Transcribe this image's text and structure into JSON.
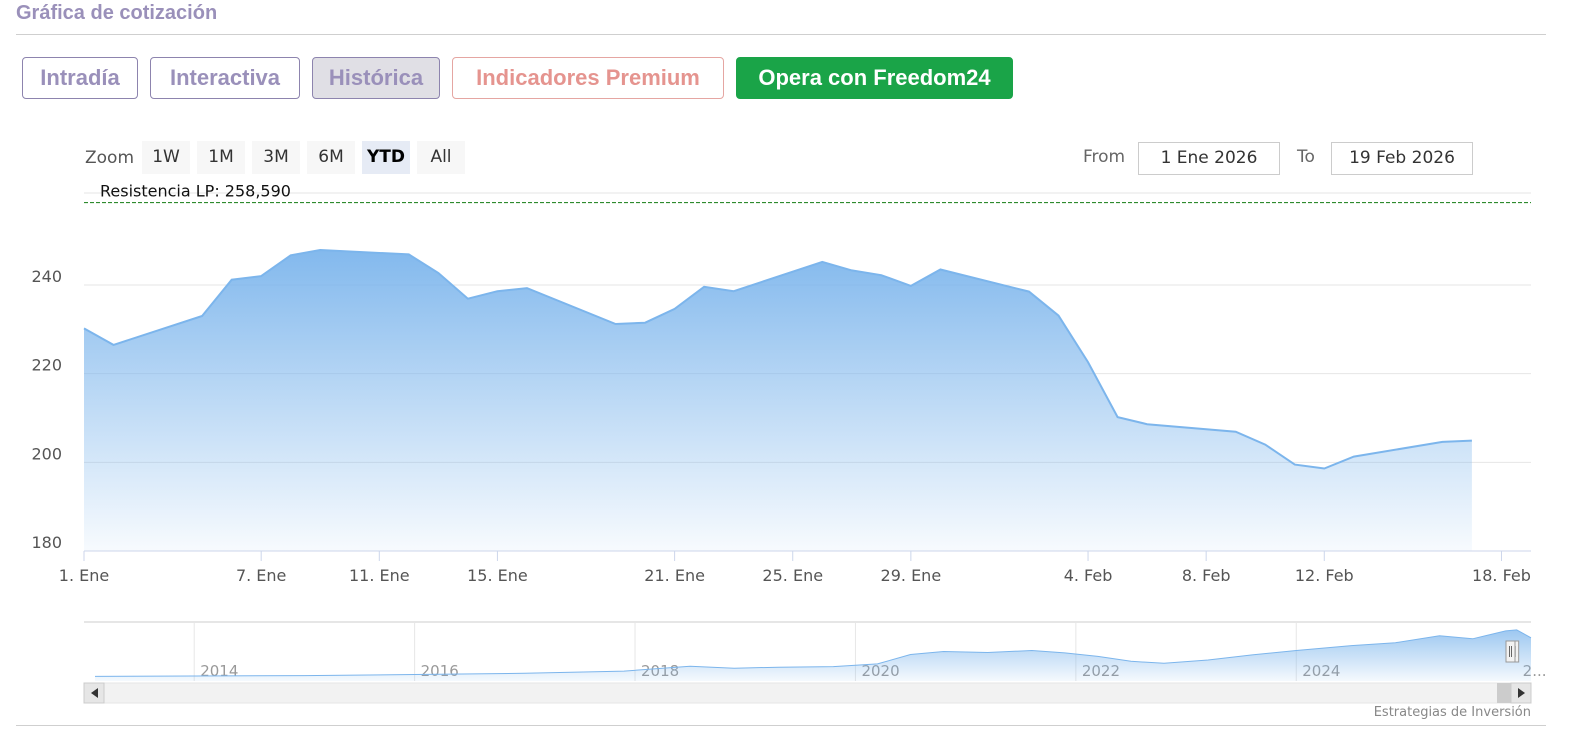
{
  "page": {
    "title": "Gráfica de cotización",
    "tabs": [
      {
        "label": "Intradía",
        "style": "normal"
      },
      {
        "label": "Interactiva",
        "style": "normal"
      },
      {
        "label": "Histórica",
        "style": "active"
      },
      {
        "label": "Indicadores Premium",
        "style": "premium"
      },
      {
        "label": "Opera con Freedom24",
        "style": "cta"
      }
    ],
    "credits": "Estrategias de Inversión"
  },
  "toolbar": {
    "zoom_label": "Zoom",
    "zoom_buttons": [
      "1W",
      "1M",
      "3M",
      "6M",
      "YTD",
      "All"
    ],
    "selected_zoom": "YTD",
    "from_label": "From",
    "from_value": "1 Ene 2026",
    "to_label": "To",
    "to_value": "19 Feb 2026"
  },
  "colors": {
    "accent": "#9a90ba",
    "cta": "#1aa448",
    "premium": "#e5948f",
    "series_line": "#7cb5ec",
    "resistance_line": "#2e8b2e"
  },
  "chart_data": {
    "type": "area",
    "title": "",
    "xlabel": "",
    "ylabel": "",
    "ylim": [
      180,
      260
    ],
    "yticks": [
      180,
      200,
      220,
      240
    ],
    "grid": true,
    "x_domain": [
      "2026-01-01",
      "2026-02-19"
    ],
    "xticks": [
      {
        "date": "2026-01-01",
        "label": "1. Ene"
      },
      {
        "date": "2026-01-07",
        "label": "7. Ene"
      },
      {
        "date": "2026-01-11",
        "label": "11. Ene"
      },
      {
        "date": "2026-01-15",
        "label": "15. Ene"
      },
      {
        "date": "2026-01-21",
        "label": "21. Ene"
      },
      {
        "date": "2026-01-25",
        "label": "25. Ene"
      },
      {
        "date": "2026-01-29",
        "label": "29. Ene"
      },
      {
        "date": "2026-02-04",
        "label": "4. Feb"
      },
      {
        "date": "2026-02-08",
        "label": "8. Feb"
      },
      {
        "date": "2026-02-12",
        "label": "12. Feb"
      },
      {
        "date": "2026-02-18",
        "label": "18. Feb"
      }
    ],
    "series": [
      {
        "values": [
          {
            "x": "2026-01-01",
            "y": 230.2
          },
          {
            "x": "2026-01-02",
            "y": 226.5
          },
          {
            "x": "2026-01-05",
            "y": 233.0
          },
          {
            "x": "2026-01-06",
            "y": 241.2
          },
          {
            "x": "2026-01-07",
            "y": 242.0
          },
          {
            "x": "2026-01-08",
            "y": 246.7
          },
          {
            "x": "2026-01-09",
            "y": 247.9
          },
          {
            "x": "2026-01-12",
            "y": 246.9
          },
          {
            "x": "2026-01-13",
            "y": 242.7
          },
          {
            "x": "2026-01-14",
            "y": 236.9
          },
          {
            "x": "2026-01-15",
            "y": 238.6
          },
          {
            "x": "2026-01-16",
            "y": 239.3
          },
          {
            "x": "2026-01-19",
            "y": 231.2
          },
          {
            "x": "2026-01-20",
            "y": 231.5
          },
          {
            "x": "2026-01-21",
            "y": 234.6
          },
          {
            "x": "2026-01-22",
            "y": 239.6
          },
          {
            "x": "2026-01-23",
            "y": 238.6
          },
          {
            "x": "2026-01-26",
            "y": 245.2
          },
          {
            "x": "2026-01-27",
            "y": 243.3
          },
          {
            "x": "2026-01-28",
            "y": 242.2
          },
          {
            "x": "2026-01-29",
            "y": 239.8
          },
          {
            "x": "2026-01-30",
            "y": 243.5
          },
          {
            "x": "2026-02-02",
            "y": 238.5
          },
          {
            "x": "2026-02-03",
            "y": 233.1
          },
          {
            "x": "2026-02-04",
            "y": 222.6
          },
          {
            "x": "2026-02-05",
            "y": 210.2
          },
          {
            "x": "2026-02-06",
            "y": 208.6
          },
          {
            "x": "2026-02-09",
            "y": 206.9
          },
          {
            "x": "2026-02-10",
            "y": 204.0
          },
          {
            "x": "2026-02-11",
            "y": 199.5
          },
          {
            "x": "2026-02-12",
            "y": 198.6
          },
          {
            "x": "2026-02-13",
            "y": 201.3
          },
          {
            "x": "2026-02-16",
            "y": 204.6
          },
          {
            "x": "2026-02-17",
            "y": 204.9
          }
        ]
      }
    ],
    "annotations": [
      {
        "type": "hline",
        "y": 258.59,
        "label": "Resistencia LP: 258,590",
        "style": "dashed"
      }
    ],
    "navigator": {
      "year_labels": [
        "2014",
        "2016",
        "2018",
        "2020",
        "2022",
        "2024",
        "2..."
      ],
      "year_range": [
        2013,
        2026.13
      ],
      "ylim": [
        0,
        260
      ],
      "series": [
        {
          "x": 2013.1,
          "y": 8
        },
        {
          "x": 2014.0,
          "y": 10
        },
        {
          "x": 2015.0,
          "y": 12
        },
        {
          "x": 2016.0,
          "y": 18
        },
        {
          "x": 2017.0,
          "y": 24
        },
        {
          "x": 2017.9,
          "y": 35
        },
        {
          "x": 2018.5,
          "y": 60
        },
        {
          "x": 2018.9,
          "y": 50
        },
        {
          "x": 2019.3,
          "y": 55
        },
        {
          "x": 2019.8,
          "y": 58
        },
        {
          "x": 2020.2,
          "y": 72
        },
        {
          "x": 2020.5,
          "y": 120
        },
        {
          "x": 2020.8,
          "y": 135
        },
        {
          "x": 2021.2,
          "y": 130
        },
        {
          "x": 2021.6,
          "y": 140
        },
        {
          "x": 2021.9,
          "y": 128
        },
        {
          "x": 2022.2,
          "y": 110
        },
        {
          "x": 2022.5,
          "y": 85
        },
        {
          "x": 2022.8,
          "y": 75
        },
        {
          "x": 2023.2,
          "y": 92
        },
        {
          "x": 2023.6,
          "y": 118
        },
        {
          "x": 2024.0,
          "y": 140
        },
        {
          "x": 2024.5,
          "y": 165
        },
        {
          "x": 2024.9,
          "y": 180
        },
        {
          "x": 2025.3,
          "y": 215
        },
        {
          "x": 2025.6,
          "y": 200
        },
        {
          "x": 2025.9,
          "y": 240
        },
        {
          "x": 2026.0,
          "y": 245
        },
        {
          "x": 2026.13,
          "y": 205
        }
      ]
    }
  }
}
